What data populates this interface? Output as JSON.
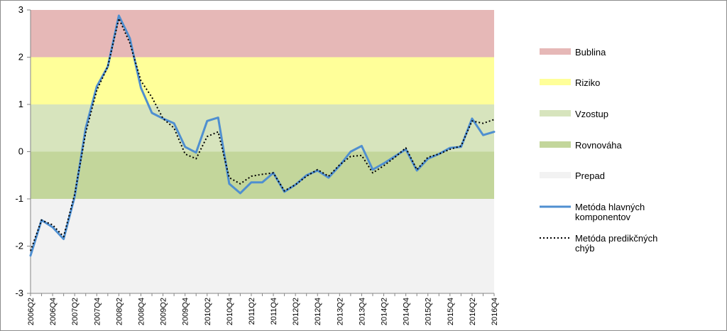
{
  "chart_data": {
    "type": "line",
    "title": "",
    "xlabel": "",
    "ylabel": "",
    "ylim": [
      -3,
      3
    ],
    "yticks": [
      "3",
      "2",
      "1",
      "0",
      "-1",
      "-2",
      "-3"
    ],
    "bands": [
      {
        "name": "Bublina",
        "from": 2,
        "to": 3,
        "color": "#e6b8b7"
      },
      {
        "name": "Riziko",
        "from": 1,
        "to": 2,
        "color": "#ffff99"
      },
      {
        "name": "Vzostup",
        "from": 0,
        "to": 1,
        "color": "#d7e4bd"
      },
      {
        "name": "Rovnováha",
        "from": -1,
        "to": 0,
        "color": "#c3d69b"
      },
      {
        "name": "Prepad",
        "from": -3,
        "to": -1,
        "color": "#f2f2f2"
      }
    ],
    "x_labels": [
      "2006Q2",
      "2006Q4",
      "2007Q2",
      "2007Q4",
      "2008Q2",
      "2008Q4",
      "2009Q2",
      "2009Q4",
      "2010Q2",
      "2010Q4",
      "2011Q2",
      "2011Q4",
      "2012Q2",
      "2012Q4",
      "2013Q2",
      "2013Q4",
      "2014Q2",
      "2014Q4",
      "2015Q2",
      "2015Q4",
      "2016Q2",
      "2016Q4"
    ],
    "series": [
      {
        "name": "Metóda hlavných komponentov",
        "color": "#4f8fd0",
        "style": "solid",
        "values": [
          -2.2,
          -1.45,
          -1.6,
          -1.85,
          -0.95,
          0.5,
          1.38,
          1.8,
          2.88,
          2.4,
          1.35,
          0.82,
          0.7,
          0.6,
          0.1,
          -0.02,
          0.65,
          0.72,
          -0.68,
          -0.88,
          -0.65,
          -0.65,
          -0.45,
          -0.85,
          -0.7,
          -0.5,
          -0.4,
          -0.55,
          -0.3,
          0.0,
          0.12,
          -0.38,
          -0.25,
          -0.1,
          0.05,
          -0.4,
          -0.15,
          -0.05,
          0.08,
          0.1,
          0.7,
          0.35,
          0.42
        ]
      },
      {
        "name": "Metóda predikčných chýb",
        "color": "#000000",
        "style": "dotted",
        "values": [
          -2.1,
          -1.45,
          -1.55,
          -1.8,
          -0.9,
          0.4,
          1.3,
          1.8,
          2.82,
          2.3,
          1.5,
          1.15,
          0.7,
          0.5,
          -0.05,
          -0.15,
          0.32,
          0.42,
          -0.55,
          -0.68,
          -0.52,
          -0.48,
          -0.45,
          -0.83,
          -0.7,
          -0.52,
          -0.38,
          -0.52,
          -0.28,
          -0.1,
          -0.08,
          -0.45,
          -0.3,
          -0.12,
          0.08,
          -0.38,
          -0.12,
          -0.05,
          0.05,
          0.12,
          0.65,
          0.6,
          0.68
        ]
      }
    ],
    "legend": {
      "position": "right",
      "items": [
        {
          "label": "Bublina",
          "kind": "band",
          "color": "#e6b8b7"
        },
        {
          "label": "Riziko",
          "kind": "band",
          "color": "#ffff99"
        },
        {
          "label": "Vzostup",
          "kind": "band",
          "color": "#d7e4bd"
        },
        {
          "label": "Rovnováha",
          "kind": "band",
          "color": "#c3d69b"
        },
        {
          "label": "Prepad",
          "kind": "band",
          "color": "#f2f2f2"
        },
        {
          "label": "Metóda hlavných",
          "label2": "komponentov",
          "kind": "line",
          "color": "#4f8fd0"
        },
        {
          "label": "Metóda predikčných",
          "label2": "chýb",
          "kind": "dotted",
          "color": "#000000"
        }
      ]
    },
    "grid": false
  }
}
